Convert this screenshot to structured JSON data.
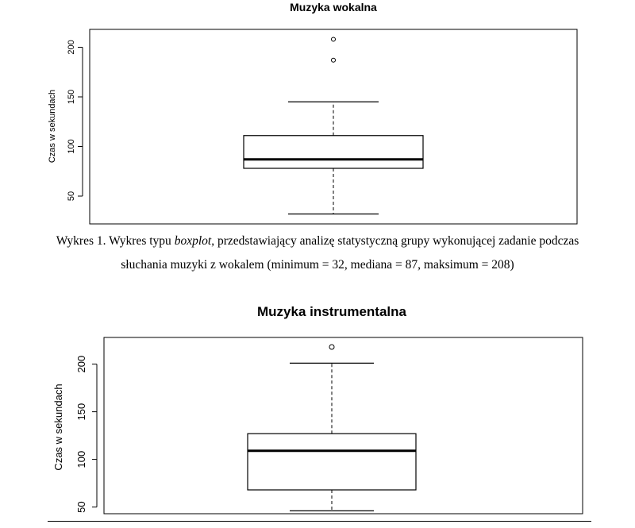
{
  "chart_data": [
    {
      "type": "boxplot",
      "title": "Muzyka wokalna",
      "ylabel": "Czas w sekundach",
      "yticks": [
        50,
        100,
        150,
        200
      ],
      "ylim": [
        22,
        218
      ],
      "box": {
        "whisker_low": 32,
        "q1": 78,
        "median": 87,
        "q3": 111,
        "whisker_high": 145,
        "outliers": [
          187,
          208
        ]
      }
    },
    {
      "type": "boxplot",
      "title": "Muzyka instrumentalna",
      "ylabel": "Czas w sekundach",
      "yticks": [
        50,
        100,
        150,
        200
      ],
      "ylim": [
        43,
        228
      ],
      "box": {
        "whisker_low": 46,
        "q1": 68,
        "median": 109,
        "q3": 127,
        "whisker_high": 201,
        "outliers": [
          218
        ]
      }
    }
  ],
  "caption": {
    "prefix": "Wykres 1. Wykres typu ",
    "italic": "boxplot",
    "suffix": ", przedstawiający analizę statystyczną grupy wykonującej zadanie podczas słuchania muzyki z wokalem (minimum = 32, mediana = 87, maksimum = 208)"
  }
}
